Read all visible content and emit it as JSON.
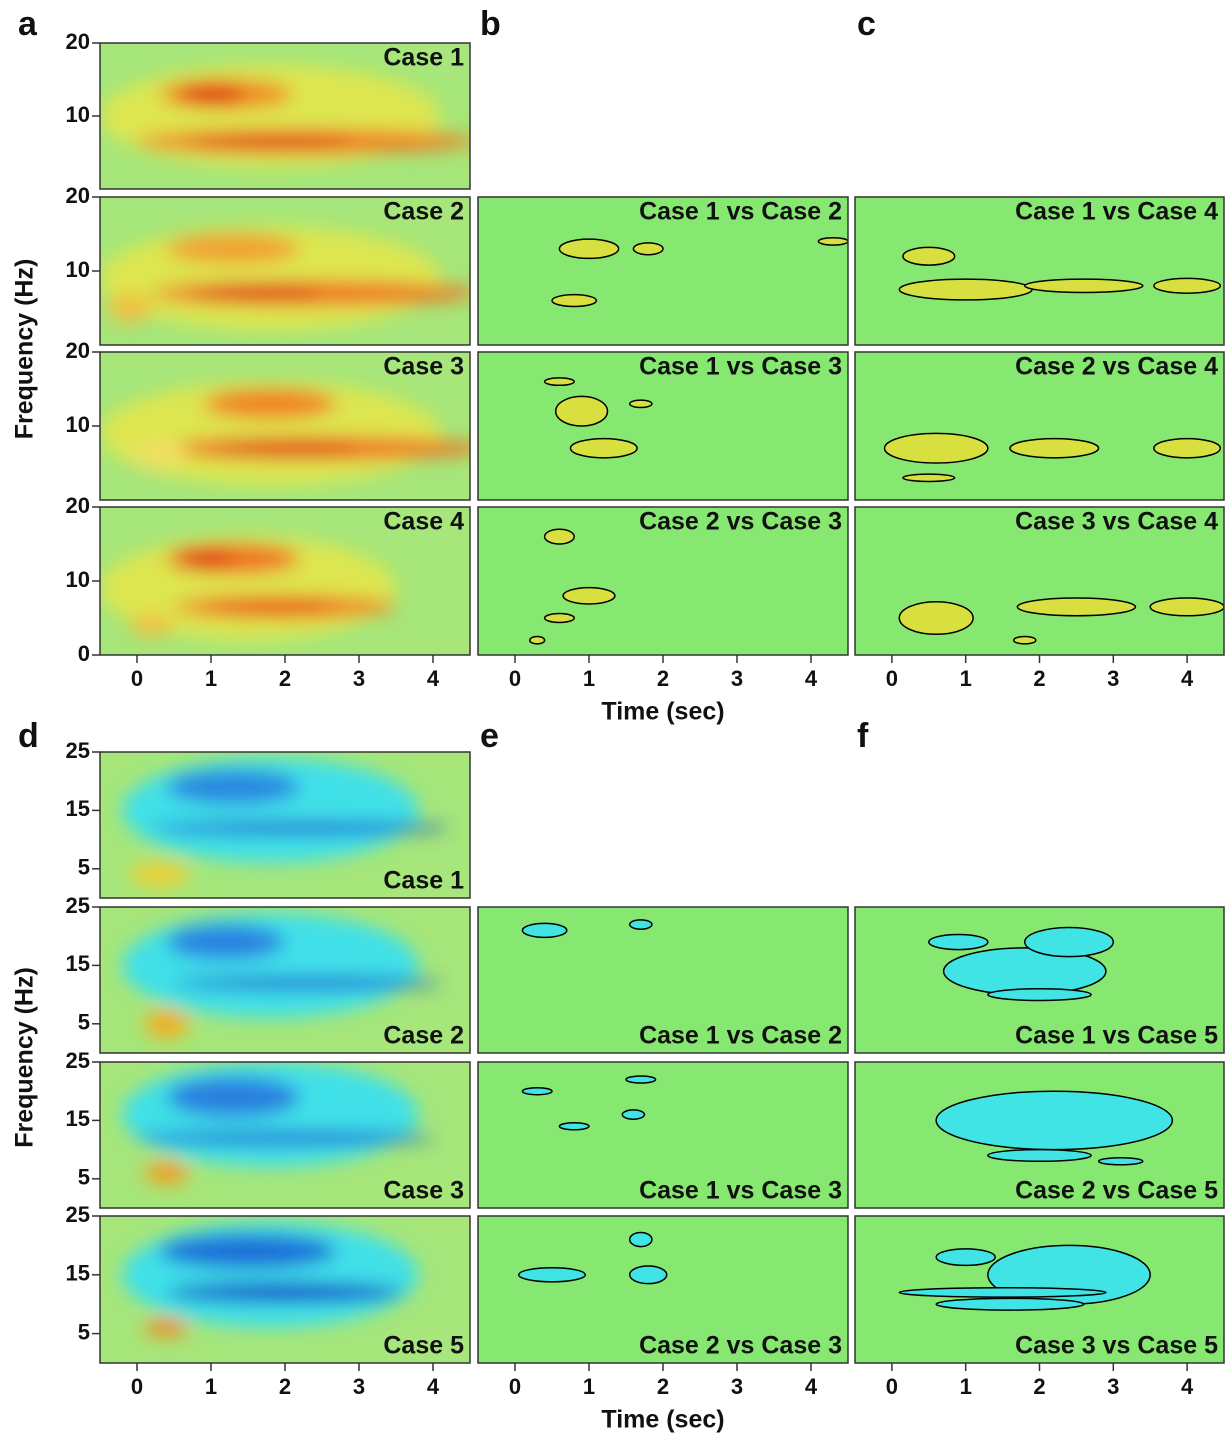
{
  "panels": [
    "a",
    "b",
    "c",
    "d",
    "e",
    "f"
  ],
  "top": {
    "xlim": [
      -0.5,
      4.5
    ],
    "ylim": [
      0,
      20
    ],
    "yticks": [
      20,
      10
    ],
    "yticks_last": [
      20,
      10,
      0
    ],
    "xticks": [
      0,
      1,
      2,
      3,
      4
    ],
    "xlabel": "Time (sec)",
    "ylabel": "Frequency (Hz)",
    "cases": [
      "Case 1",
      "Case 2",
      "Case 3",
      "Case 4"
    ],
    "b": [
      "Case 1 vs Case 2",
      "Case 1 vs Case 3",
      "Case 2 vs Case 3"
    ],
    "c": [
      "Case 1 vs Case 4",
      "Case 2 vs Case 4",
      "Case 3 vs Case 4"
    ]
  },
  "bottom": {
    "xlim": [
      -0.5,
      4.5
    ],
    "ylim": [
      0,
      25
    ],
    "yticks": [
      25,
      15,
      5
    ],
    "yticks_last": [
      25,
      15,
      5
    ],
    "xticks": [
      0,
      1,
      2,
      3,
      4
    ],
    "xlabel": "Time (sec)",
    "ylabel": "Frequency (Hz)",
    "cases": [
      "Case 1",
      "Case 2",
      "Case 3",
      "Case 5"
    ],
    "b": [
      "Case 1 vs Case 2",
      "Case 1 vs Case 3",
      "Case 2 vs Case 3"
    ],
    "c": [
      "Case 1 vs Case 5",
      "Case 2 vs Case 5",
      "Case 3 vs Case 5"
    ]
  }
}
